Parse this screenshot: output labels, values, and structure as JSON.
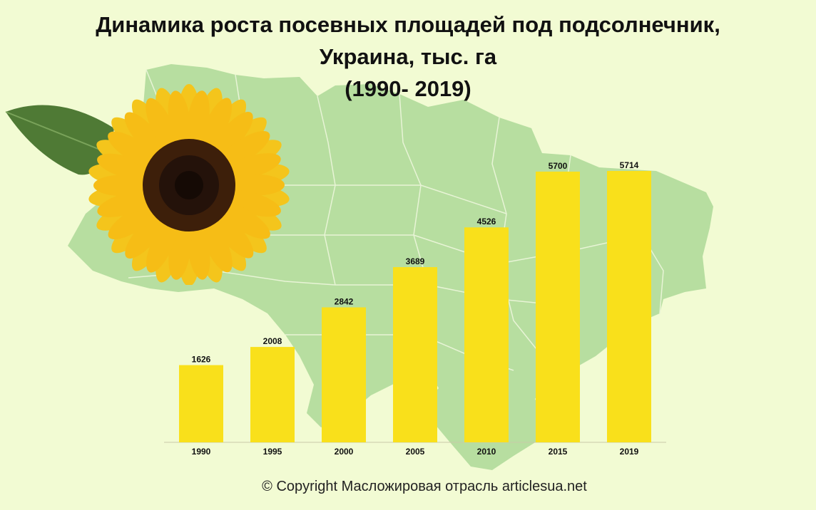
{
  "title": {
    "line1": "Динамика роста посевных площадей под подсолнечник,",
    "line2": "Украина, тыс. га",
    "line3": "(1990- 2019)"
  },
  "chart_data": {
    "type": "bar",
    "title": "Динамика роста посевных площадей под подсолнечник, Украина, тыс. га (1990- 2019)",
    "categories": [
      "1990",
      "1995",
      "2000",
      "2005",
      "2010",
      "2015",
      "2019"
    ],
    "values": [
      1626,
      2008,
      2842,
      3689,
      4526,
      5700,
      5714
    ],
    "data_labels": [
      "1626",
      "2008",
      "2842",
      "3689",
      "4526",
      "5700",
      "5714"
    ],
    "xlabel": "",
    "ylabel": "",
    "ylim": [
      0,
      5714
    ],
    "grid": false,
    "legend": "none"
  },
  "colors": {
    "background": "#f2fbd3",
    "bar": "#f9e01b",
    "map_fill": "#b7dea0",
    "map_border": "#e8f4d6"
  },
  "copyright": "© Copyright Масложировая отрасль articlesua.net"
}
